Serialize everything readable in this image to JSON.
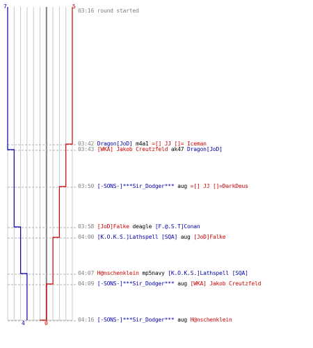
{
  "teams": {
    "blue": {
      "color": "#0000aa",
      "start_count": "7",
      "end_count": "4"
    },
    "red": {
      "color": "#cc0000",
      "start_count": "5",
      "end_count": "0"
    }
  },
  "events": [
    {
      "time": "03:16",
      "text": "round started"
    },
    {
      "time": "03:42",
      "attacker": "Dragon[JoD]",
      "attacker_team": "blue",
      "weapon": "m4a1",
      "victim": "=[] JJ []= Iceman",
      "victim_team": "red"
    },
    {
      "time": "03:43",
      "attacker": "[WKA] Jakob Creutzfeld",
      "attacker_team": "red",
      "weapon": "ak47",
      "victim": "Dragon[JoD]",
      "victim_team": "blue"
    },
    {
      "time": "03:50",
      "attacker": "[-SONS-]***Sir_Dodger***",
      "attacker_team": "blue",
      "weapon": "aug",
      "victim": "=[] JJ []=DarkDeus",
      "victim_team": "red"
    },
    {
      "time": "03:58",
      "attacker": "[JoD]Falke",
      "attacker_team": "red",
      "weapon": "deagle",
      "victim": "[F.@.S.T]Conan",
      "victim_team": "blue"
    },
    {
      "time": "04:00",
      "attacker": "[K.O.K.S.]Lathspell [SQA]",
      "attacker_team": "blue",
      "weapon": "aug",
      "victim": "[JoD]Falke",
      "victim_team": "red"
    },
    {
      "time": "04:07",
      "attacker": "H@nschenklein",
      "attacker_team": "red",
      "weapon": "mp5navy",
      "victim": "[K.O.K.S.]Lathspell [SQA]",
      "victim_team": "blue"
    },
    {
      "time": "04:09",
      "attacker": "[-SONS-]***Sir_Dodger***",
      "attacker_team": "blue",
      "weapon": "aug",
      "victim": "[WKA] Jakob Creutzfeld",
      "victim_team": "red"
    },
    {
      "time": "04:16",
      "attacker": "[-SONS-]***Sir_Dodger***",
      "attacker_team": "blue",
      "weapon": "aug",
      "victim": "H@nschenklein",
      "victim_team": "red"
    }
  ]
}
